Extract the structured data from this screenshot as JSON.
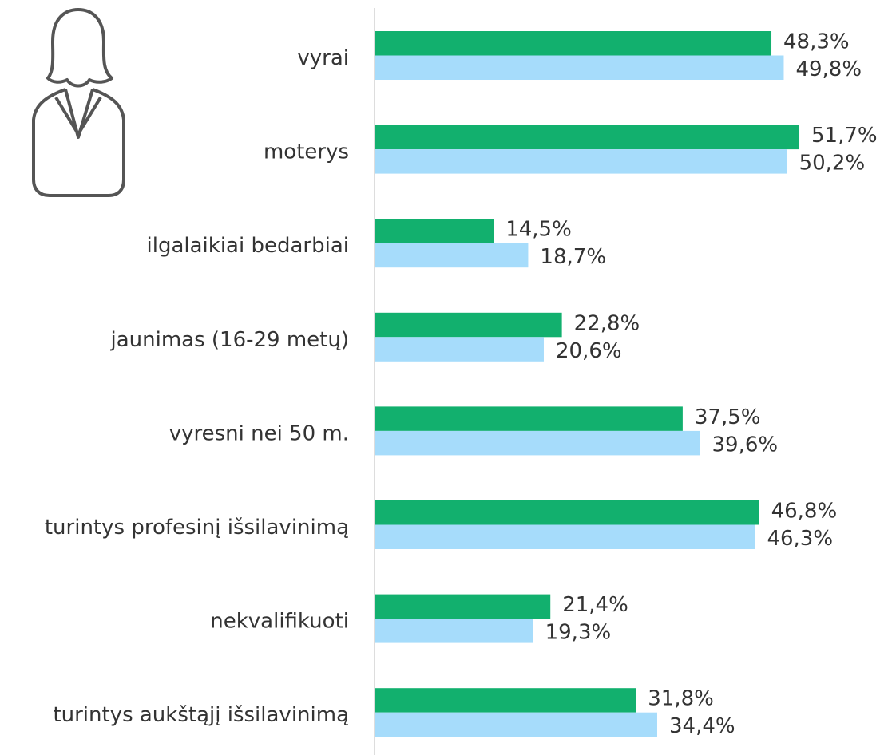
{
  "chart_data": {
    "type": "bar",
    "orientation": "horizontal",
    "categories": [
      "vyrai",
      "moterys",
      "ilgalaikiai bedarbiai",
      "jaunimas (16-29 metų)",
      "vyresni nei 50 m.",
      "turintys profesinį išsilavinimą",
      "nekvalifikuoti",
      "turintys aukštąjį išsilavinimą"
    ],
    "series": [
      {
        "color": "#12b06e",
        "values": [
          48.3,
          51.7,
          14.5,
          22.8,
          37.5,
          46.8,
          21.4,
          31.8
        ],
        "value_labels": [
          "48,3%",
          "51,7%",
          "14,5%",
          "22,8%",
          "37,5%",
          "46,8%",
          "21,4%",
          "31,8%"
        ]
      },
      {
        "color": "#a6dcfb",
        "values": [
          49.8,
          50.2,
          18.7,
          20.6,
          39.6,
          46.3,
          19.3,
          34.4
        ],
        "value_labels": [
          "49,8%",
          "50,2%",
          "18,7%",
          "20,6%",
          "39,6%",
          "46,3%",
          "19,3%",
          "34,4%"
        ]
      }
    ],
    "xlim": [
      0,
      62
    ]
  }
}
